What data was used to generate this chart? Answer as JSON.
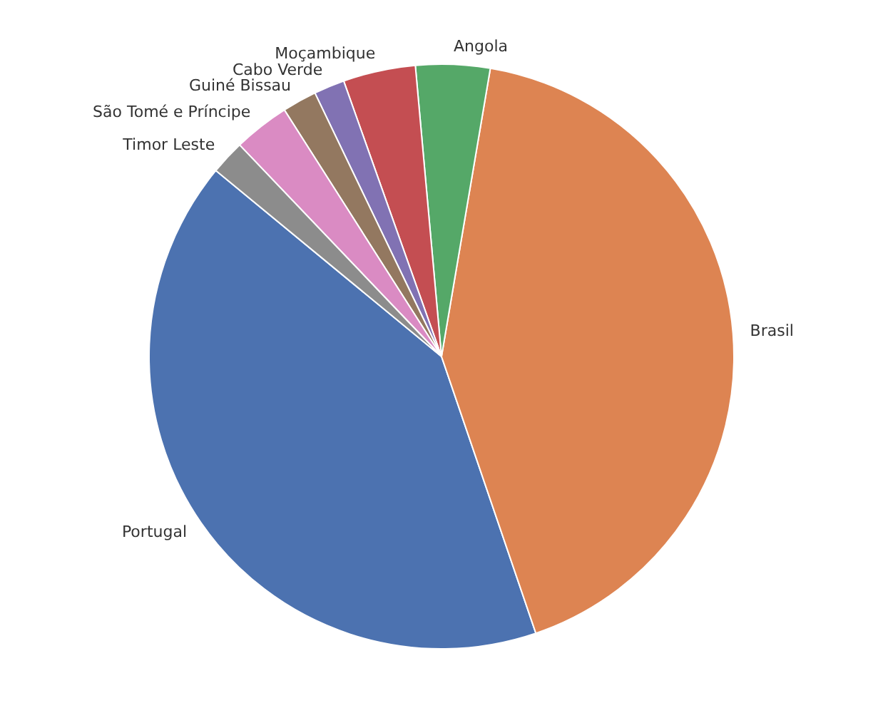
{
  "chart_data": {
    "type": "pie",
    "categories": [
      "Portugal",
      "Brasil",
      "Angola",
      "Moçambique",
      "Cabo Verde",
      "Guiné Bissau",
      "São Tomé e Príncipe",
      "Timor Leste"
    ],
    "values": [
      41.2,
      42.1,
      4.1,
      4.0,
      1.7,
      1.9,
      3.1,
      1.9
    ],
    "colors": [
      "#4c72b0",
      "#dd8452",
      "#55a868",
      "#c44e52",
      "#8172b3",
      "#937860",
      "#da8bc3",
      "#8c8c8c"
    ]
  }
}
